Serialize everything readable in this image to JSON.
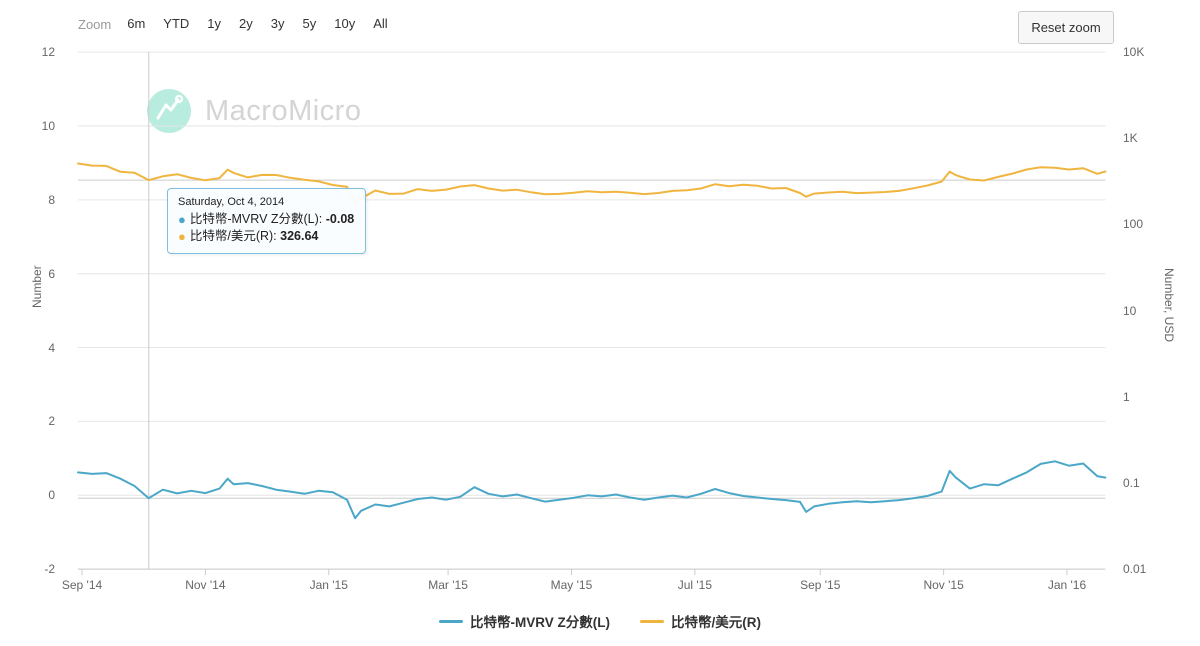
{
  "toolbar": {
    "zoom_label": "Zoom",
    "ranges": [
      "6m",
      "YTD",
      "1y",
      "2y",
      "3y",
      "5y",
      "10y",
      "All"
    ],
    "reset_label": "Reset zoom"
  },
  "watermark": {
    "text": "MacroMicro"
  },
  "tooltip": {
    "date": "Saturday, Oct 4, 2014",
    "rows": [
      {
        "label": "比特幣-MVRV Z分數(L)",
        "value": "-0.08",
        "color": "#4BA7C8"
      },
      {
        "label": "比特幣/美元(R)",
        "value": "326.64",
        "color": "#F0B53F"
      }
    ]
  },
  "legend": [
    {
      "label": "比特幣-MVRV Z分數(L)",
      "color": "#4BA7C8"
    },
    {
      "label": "比特幣/美元(R)",
      "color": "#F0B53F"
    }
  ],
  "colors": {
    "grid": "#e6e6e6",
    "axis_line": "#cccccc",
    "crosshair": "#cccccc",
    "tick_text": "#666666"
  },
  "chart_data": {
    "type": "line",
    "left_axis": {
      "title": "Number",
      "ticks": [
        "12",
        "10",
        "8",
        "6",
        "4",
        "2",
        "0",
        "-2"
      ],
      "tick_values": [
        12,
        10,
        8,
        6,
        4,
        2,
        0,
        -2
      ],
      "range": [
        -2,
        12
      ],
      "scale": "linear"
    },
    "right_axis": {
      "title": "Number, USD",
      "ticks": [
        "10K",
        "1K",
        "100",
        "10",
        "1",
        "0.1",
        "0.01"
      ],
      "tick_values": [
        10000,
        1000,
        100,
        10,
        1,
        0.1,
        0.01
      ],
      "range": [
        0.01,
        10000
      ],
      "scale": "log"
    },
    "x_axis": {
      "tick_labels": [
        "Sep '14",
        "Nov '14",
        "Jan '15",
        "Mar '15",
        "May '15",
        "Jul '15",
        "Sep '15",
        "Nov '15",
        "Jan '16"
      ],
      "tick_dates": [
        "2014-09-01",
        "2014-11-01",
        "2015-01-01",
        "2015-03-01",
        "2015-05-01",
        "2015-07-01",
        "2015-09-01",
        "2015-11-01",
        "2016-01-01"
      ],
      "grid": false
    },
    "grid_horizontal": true,
    "legend_position": "bottom-center",
    "crosshair": {
      "date": "2014-10-04",
      "left_value": -0.08,
      "right_value": 326.64
    },
    "dates": [
      "2014-08-30",
      "2014-09-06",
      "2014-09-13",
      "2014-09-20",
      "2014-09-27",
      "2014-10-04",
      "2014-10-11",
      "2014-10-18",
      "2014-10-25",
      "2014-11-01",
      "2014-11-08",
      "2014-11-12",
      "2014-11-15",
      "2014-11-22",
      "2014-11-29",
      "2014-12-06",
      "2014-12-13",
      "2014-12-20",
      "2014-12-27",
      "2015-01-03",
      "2015-01-10",
      "2015-01-14",
      "2015-01-17",
      "2015-01-24",
      "2015-01-31",
      "2015-02-07",
      "2015-02-14",
      "2015-02-21",
      "2015-02-28",
      "2015-03-07",
      "2015-03-14",
      "2015-03-21",
      "2015-03-28",
      "2015-04-04",
      "2015-04-11",
      "2015-04-18",
      "2015-04-25",
      "2015-05-02",
      "2015-05-09",
      "2015-05-16",
      "2015-05-23",
      "2015-05-30",
      "2015-06-06",
      "2015-06-13",
      "2015-06-20",
      "2015-06-27",
      "2015-07-04",
      "2015-07-11",
      "2015-07-18",
      "2015-07-25",
      "2015-08-01",
      "2015-08-08",
      "2015-08-15",
      "2015-08-22",
      "2015-08-25",
      "2015-08-29",
      "2015-09-05",
      "2015-09-12",
      "2015-09-19",
      "2015-09-26",
      "2015-10-03",
      "2015-10-10",
      "2015-10-17",
      "2015-10-24",
      "2015-10-31",
      "2015-11-04",
      "2015-11-07",
      "2015-11-14",
      "2015-11-21",
      "2015-11-28",
      "2015-12-05",
      "2015-12-12",
      "2015-12-19",
      "2015-12-26",
      "2016-01-02",
      "2016-01-09",
      "2016-01-16",
      "2016-01-20"
    ],
    "series": [
      {
        "name": "比特幣-MVRV Z分數(L)",
        "axis": "left",
        "color": "#4BA7C8",
        "values": [
          0.62,
          0.58,
          0.6,
          0.45,
          0.25,
          -0.08,
          0.15,
          0.05,
          0.12,
          0.06,
          0.18,
          0.45,
          0.3,
          0.33,
          0.25,
          0.15,
          0.1,
          0.04,
          0.12,
          0.08,
          -0.12,
          -0.62,
          -0.42,
          -0.25,
          -0.3,
          -0.2,
          -0.1,
          -0.06,
          -0.12,
          -0.04,
          0.22,
          0.04,
          -0.03,
          0.02,
          -0.08,
          -0.17,
          -0.12,
          -0.07,
          0.0,
          -0.03,
          0.02,
          -0.06,
          -0.12,
          -0.06,
          -0.01,
          -0.06,
          0.04,
          0.17,
          0.06,
          -0.02,
          -0.06,
          -0.1,
          -0.13,
          -0.18,
          -0.45,
          -0.3,
          -0.23,
          -0.19,
          -0.16,
          -0.19,
          -0.16,
          -0.13,
          -0.08,
          -0.02,
          0.1,
          0.66,
          0.48,
          0.18,
          0.3,
          0.27,
          0.45,
          0.62,
          0.85,
          0.92,
          0.8,
          0.86,
          0.52,
          0.48
        ]
      },
      {
        "name": "比特幣/美元(R)",
        "axis": "right",
        "color": "#F0B53F",
        "values": [
          509,
          482,
          478,
          408,
          399,
          326.64,
          362,
          383,
          347,
          325,
          345,
          432,
          396,
          352,
          376,
          375,
          348,
          330,
          316,
          287,
          274,
          177,
          200,
          248,
          226,
          228,
          257,
          245,
          254,
          276,
          286,
          261,
          247,
          253,
          236,
          224,
          226,
          233,
          243,
          237,
          240,
          233,
          225,
          232,
          245,
          250,
          261,
          293,
          278,
          289,
          281,
          261,
          265,
          232,
          210,
          228,
          235,
          240,
          231,
          234,
          238,
          245,
          263,
          283,
          314,
          410,
          373,
          332,
          324,
          356,
          389,
          434,
          461,
          454,
          434,
          449,
          387,
          412
        ]
      }
    ]
  }
}
